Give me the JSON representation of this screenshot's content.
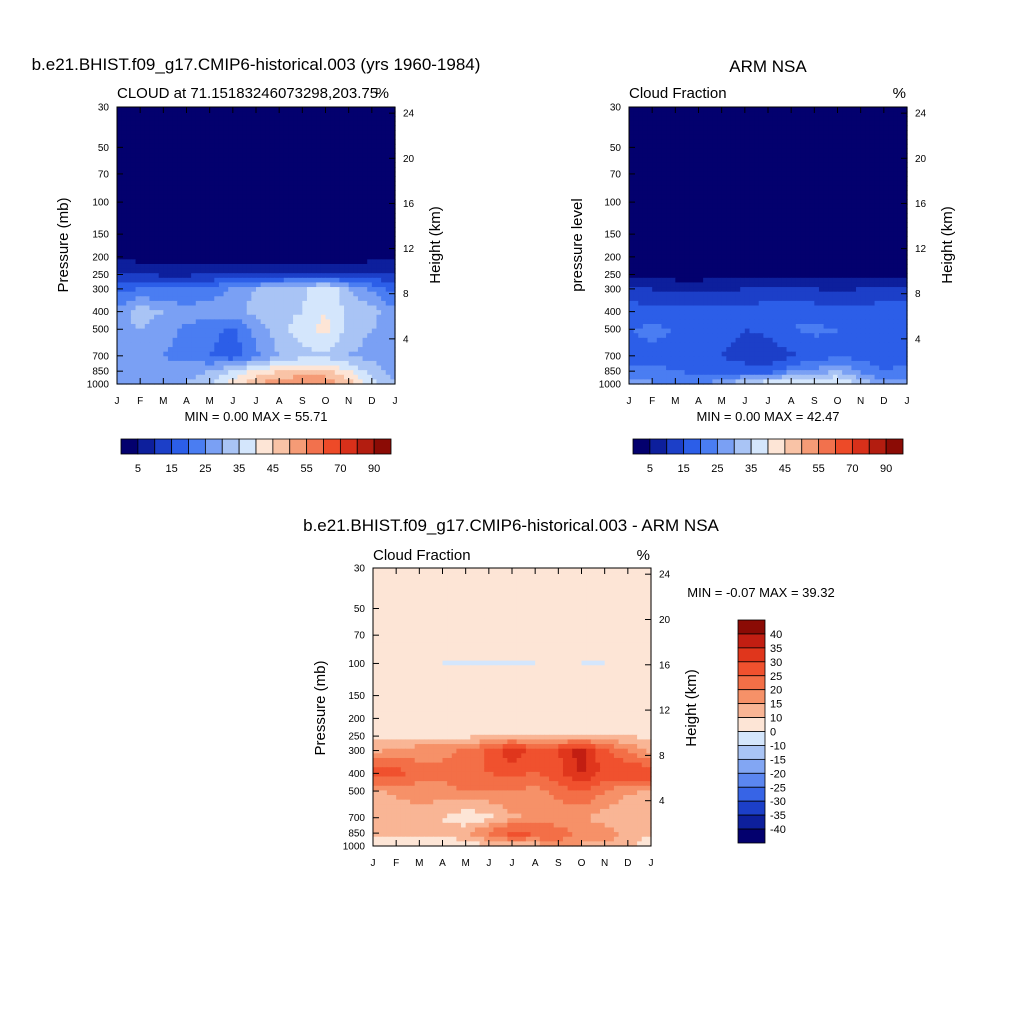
{
  "ui": {
    "colors": {
      "background": "#ffffff",
      "frame": "#000000"
    }
  },
  "chart_data": [
    {
      "type": "heatmap",
      "title": "b.e21.BHIST.f09_g17.CMIP6-historical.003 (yrs 1960-1984)",
      "left_label": "CLOUD at 71.15183246073298,203.75",
      "right_label": "%",
      "ylabel": "Pressure (mb)",
      "ylabel_right": "Height (km)",
      "stats": "MIN =   0.00 MAX =  55.71",
      "x_ticks": [
        "J",
        "F",
        "M",
        "A",
        "M",
        "J",
        "J",
        "A",
        "S",
        "O",
        "N",
        "D",
        "J"
      ],
      "y_ticks": [
        "30",
        "50",
        "70",
        "100",
        "150",
        "200",
        "250",
        "300",
        "400",
        "500",
        "700",
        "850",
        "1000"
      ],
      "y_ticks_right": [
        "24",
        "20",
        "16",
        "12",
        "8",
        "4"
      ],
      "colorbar_labels": [
        "5",
        "15",
        "25",
        "35",
        "45",
        "55",
        "70",
        "90"
      ],
      "colorbar_colors": [
        "#03006e",
        "#0d1f9c",
        "#1c3fc8",
        "#2c5ee8",
        "#4a7df2",
        "#7aa0f4",
        "#a9c4f5",
        "#d4e6fc",
        "#fde5d6",
        "#f9c3a6",
        "#f59b76",
        "#f2714d",
        "#ed4a28",
        "#d8301a",
        "#b31d10",
        "#8b0b05"
      ],
      "pressure": [
        1000,
        850,
        700,
        500,
        400,
        300,
        250,
        200,
        150,
        100,
        70,
        50,
        30
      ],
      "months": [
        "Jan",
        "Feb",
        "Mar",
        "Apr",
        "May",
        "Jun",
        "Jul",
        "Aug",
        "Sep",
        "Oct",
        "Nov",
        "Dec",
        "Jan"
      ],
      "values": [
        [
          30,
          28,
          28,
          30,
          35,
          42,
          50,
          53,
          56,
          55,
          48,
          38,
          30
        ],
        [
          28,
          27,
          27,
          28,
          30,
          36,
          42,
          45,
          46,
          46,
          40,
          33,
          28
        ],
        [
          26,
          25,
          25,
          23,
          20,
          16,
          24,
          30,
          33,
          34,
          30,
          28,
          26
        ],
        [
          28,
          30,
          27,
          24,
          22,
          19,
          27,
          33,
          38,
          42,
          33,
          30,
          28
        ],
        [
          26,
          33,
          30,
          27,
          28,
          28,
          32,
          33,
          35,
          40,
          34,
          32,
          26
        ],
        [
          18,
          20,
          20,
          20,
          22,
          26,
          30,
          32,
          34,
          40,
          30,
          24,
          18
        ],
        [
          10,
          10,
          9,
          9,
          10,
          11,
          12,
          12,
          12,
          12,
          11,
          11,
          10
        ],
        [
          4,
          3,
          2,
          2,
          2,
          2,
          2,
          2,
          2,
          2,
          2,
          3,
          4
        ],
        [
          0.5,
          0.5,
          0.5,
          0.5,
          0.5,
          0.5,
          0.5,
          0.5,
          0.5,
          0.5,
          0.5,
          0.5,
          0.5
        ],
        [
          0,
          0,
          0,
          0,
          0,
          0,
          0,
          0,
          0,
          0,
          0,
          0,
          0
        ],
        [
          0,
          0,
          0,
          0,
          0,
          0,
          0,
          0,
          0,
          0,
          0,
          0,
          0
        ],
        [
          0,
          0,
          0,
          0,
          0,
          0,
          0,
          0,
          0,
          0,
          0,
          0,
          0
        ],
        [
          0,
          0,
          0,
          0,
          0,
          0,
          0,
          0,
          0,
          0,
          0,
          0,
          0
        ]
      ],
      "min": 0.0,
      "max": 55.71
    },
    {
      "type": "heatmap",
      "title": "ARM NSA",
      "left_label": "Cloud Fraction",
      "right_label": "%",
      "ylabel": "pressure level",
      "ylabel_right": "Height (km)",
      "stats": "MIN =   0.00 MAX =  42.47",
      "x_ticks": [
        "J",
        "F",
        "M",
        "A",
        "M",
        "J",
        "J",
        "A",
        "S",
        "O",
        "N",
        "D",
        "J"
      ],
      "y_ticks": [
        "30",
        "50",
        "70",
        "100",
        "150",
        "200",
        "250",
        "300",
        "400",
        "500",
        "700",
        "850",
        "1000"
      ],
      "y_ticks_right": [
        "24",
        "20",
        "16",
        "12",
        "8",
        "4"
      ],
      "colorbar_labels": [
        "5",
        "15",
        "25",
        "35",
        "45",
        "55",
        "70",
        "90"
      ],
      "colorbar_colors": [
        "#03006e",
        "#0d1f9c",
        "#1c3fc8",
        "#2c5ee8",
        "#4a7df2",
        "#7aa0f4",
        "#a9c4f5",
        "#d4e6fc",
        "#fde5d6",
        "#f9c3a6",
        "#f59b76",
        "#f2714d",
        "#ed4a28",
        "#d8301a",
        "#b31d10",
        "#8b0b05"
      ],
      "pressure": [
        1000,
        850,
        700,
        500,
        400,
        300,
        250,
        200,
        150,
        100,
        70,
        50,
        30
      ],
      "months": [
        "Jan",
        "Feb",
        "Mar",
        "Apr",
        "May",
        "Jun",
        "Jul",
        "Aug",
        "Sep",
        "Oct",
        "Nov",
        "Dec",
        "Jan"
      ],
      "values": [
        [
          28,
          26,
          24,
          24,
          28,
          36,
          40,
          42,
          40,
          42,
          34,
          26,
          28
        ],
        [
          22,
          21,
          20,
          19,
          18,
          17,
          16,
          24,
          26,
          30,
          24,
          20,
          22
        ],
        [
          18,
          19,
          18,
          16,
          15,
          13,
          12,
          14,
          17,
          19,
          18,
          17,
          18
        ],
        [
          20,
          21,
          20,
          19,
          17,
          15,
          16,
          20,
          21,
          20,
          19,
          18,
          20
        ],
        [
          18,
          17,
          17,
          18,
          18,
          17,
          18,
          19,
          18,
          17,
          17,
          18,
          18
        ],
        [
          11,
          10,
          8,
          8,
          9,
          10,
          11,
          10,
          10,
          9,
          10,
          11,
          11
        ],
        [
          4,
          4,
          3,
          3,
          3,
          4,
          4,
          4,
          3,
          3,
          3,
          4,
          4
        ],
        [
          1,
          1,
          1,
          1,
          1,
          1,
          1,
          1,
          1,
          1,
          1,
          1,
          1
        ],
        [
          0,
          0,
          0,
          0,
          0,
          0,
          0,
          0,
          0,
          0,
          0,
          0,
          0
        ],
        [
          0,
          0,
          0,
          0,
          0,
          0,
          0,
          0,
          0,
          0,
          0,
          0,
          0
        ],
        [
          0,
          0,
          0,
          0,
          0,
          0,
          0,
          0,
          0,
          0,
          0,
          0,
          0
        ],
        [
          0,
          0,
          0,
          0,
          0,
          0,
          0,
          0,
          0,
          0,
          0,
          0,
          0
        ],
        [
          0,
          0,
          0,
          0,
          0,
          0,
          0,
          0,
          0,
          0,
          0,
          0,
          0
        ]
      ],
      "min": 0.0,
      "max": 42.47
    },
    {
      "type": "heatmap",
      "title": "b.e21.BHIST.f09_g17.CMIP6-historical.003 - ARM NSA",
      "left_label": "Cloud Fraction",
      "right_label": "%",
      "ylabel": "Pressure (mb)",
      "ylabel_right": "Height (km)",
      "stats": "MIN =  -0.07 MAX =  39.32",
      "x_ticks": [
        "J",
        "F",
        "M",
        "A",
        "M",
        "J",
        "J",
        "A",
        "S",
        "O",
        "N",
        "D",
        "J"
      ],
      "y_ticks": [
        "30",
        "50",
        "70",
        "100",
        "150",
        "200",
        "250",
        "300",
        "400",
        "500",
        "700",
        "850",
        "1000"
      ],
      "y_ticks_right": [
        "24",
        "20",
        "16",
        "12",
        "8",
        "4"
      ],
      "colorbar_labels": [
        "40",
        "35",
        "30",
        "25",
        "20",
        "15",
        "10",
        "0",
        "-10",
        "-15",
        "-20",
        "-25",
        "-30",
        "-35",
        "-40"
      ],
      "colorbar_colors": [
        "#8b0b05",
        "#c21e12",
        "#e0361c",
        "#f0512e",
        "#f36f47",
        "#f69168",
        "#f9b595",
        "#fde5d6",
        "#d4e6fc",
        "#a9c4f5",
        "#82a6f3",
        "#5b86f0",
        "#3764e6",
        "#1c3fc8",
        "#0d1f9c",
        "#03006e"
      ],
      "pressure": [
        1000,
        850,
        700,
        500,
        400,
        300,
        250,
        200,
        150,
        100,
        70,
        50,
        30
      ],
      "months": [
        "Jan",
        "Feb",
        "Mar",
        "Apr",
        "May",
        "Jun",
        "Jul",
        "Aug",
        "Sep",
        "Oct",
        "Nov",
        "Dec",
        "Jan"
      ],
      "values": [
        [
          4,
          4,
          6,
          5,
          8,
          8,
          12,
          12,
          18,
          14,
          14,
          12,
          4
        ],
        [
          12,
          12,
          12,
          11,
          14,
          22,
          28,
          26,
          24,
          18,
          18,
          14,
          12
        ],
        [
          10,
          12,
          12,
          10,
          6,
          8,
          14,
          16,
          16,
          16,
          12,
          10,
          10
        ],
        [
          14,
          16,
          18,
          18,
          20,
          20,
          20,
          18,
          22,
          26,
          20,
          16,
          14
        ],
        [
          30,
          28,
          22,
          22,
          25,
          25,
          26,
          25,
          28,
          36,
          28,
          30,
          30
        ],
        [
          14,
          16,
          18,
          18,
          21,
          26,
          34,
          28,
          30,
          38,
          26,
          20,
          14
        ],
        [
          8,
          8,
          9,
          9,
          9,
          10,
          12,
          12,
          12,
          12,
          11,
          10,
          8
        ],
        [
          3,
          3,
          2,
          2,
          2,
          2,
          2,
          2,
          2,
          2,
          2,
          3,
          3
        ],
        [
          1,
          1,
          1,
          1,
          1,
          1,
          1,
          1,
          1,
          1,
          1,
          1,
          1
        ],
        [
          1,
          1,
          1,
          -0.05,
          -0.05,
          -0.05,
          -0.05,
          -0.05,
          1,
          -0.05,
          -0.05,
          1,
          1
        ],
        [
          1,
          1,
          1,
          1,
          1,
          1,
          1,
          1,
          1,
          1,
          1,
          1,
          1
        ],
        [
          1,
          1,
          1,
          1,
          1,
          1,
          1,
          1,
          1,
          1,
          1,
          1,
          1
        ],
        [
          1,
          1,
          1,
          1,
          1,
          1,
          1,
          1,
          1,
          1,
          1,
          1,
          1
        ]
      ],
      "min": -0.07,
      "max": 39.32
    }
  ]
}
